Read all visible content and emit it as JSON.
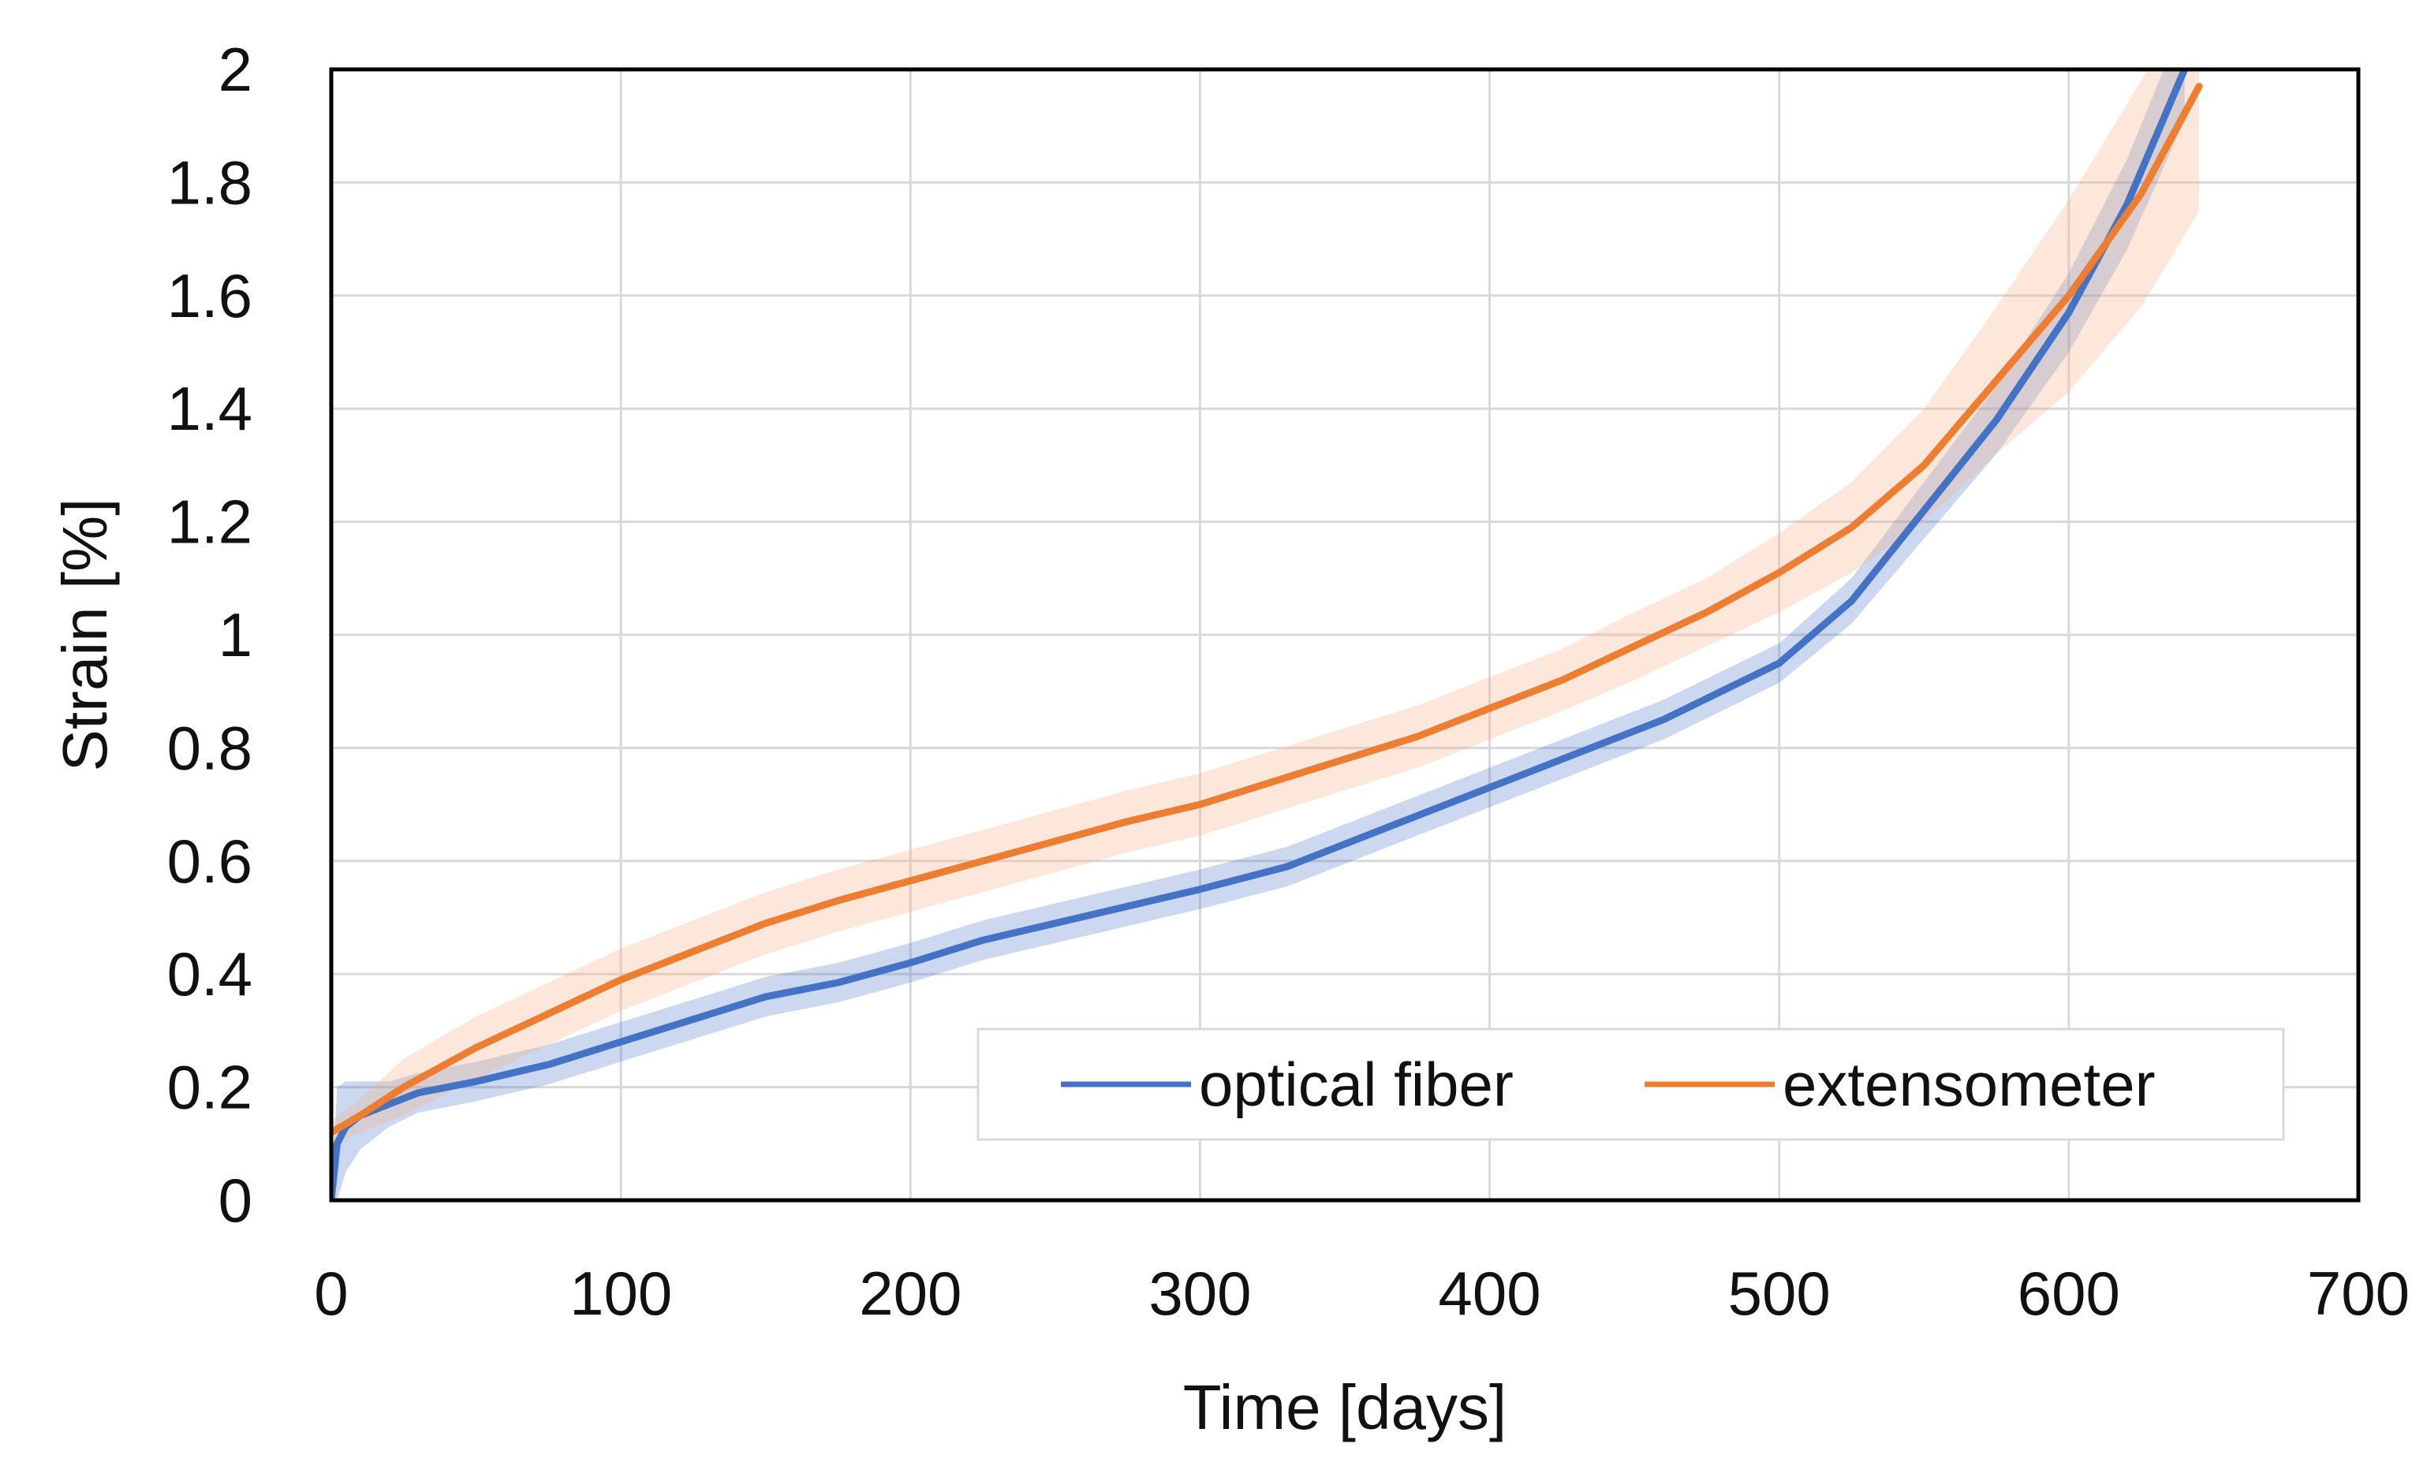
{
  "chart_data": {
    "type": "line",
    "title": "",
    "xlabel": "Time [days]",
    "ylabel": "Strain [%]",
    "xlim": [
      0,
      700
    ],
    "ylim": [
      0,
      2
    ],
    "xticks": [
      0,
      100,
      200,
      300,
      400,
      500,
      600,
      700
    ],
    "yticks": [
      0,
      0.2,
      0.4,
      0.6,
      0.8,
      1,
      1.2,
      1.4,
      1.6,
      1.8,
      2
    ],
    "xtick_labels": [
      "0",
      "100",
      "200",
      "300",
      "400",
      "500",
      "600",
      "700"
    ],
    "ytick_labels": [
      "0",
      "0.2",
      "0.4",
      "0.6",
      "0.8",
      "1",
      "1.2",
      "1.4",
      "1.6",
      "1.8",
      "2"
    ],
    "grid": true,
    "legend_position": "bottom-right",
    "series": [
      {
        "name": "optical fiber",
        "color": "#4472C4",
        "band_color": "#4472C4",
        "x": [
          0,
          2,
          5,
          10,
          20,
          30,
          50,
          75,
          100,
          125,
          150,
          175,
          200,
          225,
          250,
          275,
          300,
          330,
          350,
          375,
          400,
          430,
          460,
          480,
          500,
          525,
          550,
          575,
          600,
          620,
          640
        ],
        "values": [
          0,
          0.1,
          0.13,
          0.15,
          0.17,
          0.19,
          0.21,
          0.24,
          0.28,
          0.32,
          0.36,
          0.385,
          0.42,
          0.46,
          0.49,
          0.52,
          0.55,
          0.59,
          0.63,
          0.68,
          0.73,
          0.79,
          0.85,
          0.9,
          0.95,
          1.06,
          1.22,
          1.38,
          1.57,
          1.76,
          2.0
        ],
        "band_width": [
          0,
          0.1,
          0.08,
          0.06,
          0.04,
          0.035,
          0.035,
          0.035,
          0.035,
          0.035,
          0.035,
          0.035,
          0.035,
          0.035,
          0.035,
          0.035,
          0.035,
          0.035,
          0.035,
          0.035,
          0.035,
          0.035,
          0.035,
          0.035,
          0.035,
          0.04,
          0.05,
          0.06,
          0.07,
          0.08,
          0.09
        ]
      },
      {
        "name": "extensometer",
        "color": "#ED7D31",
        "band_color": "#F4B183",
        "x": [
          0,
          10,
          25,
          50,
          75,
          100,
          125,
          150,
          175,
          200,
          225,
          250,
          275,
          300,
          325,
          350,
          375,
          400,
          425,
          450,
          475,
          500,
          525,
          550,
          575,
          600,
          625,
          645
        ],
        "values": [
          0.12,
          0.15,
          0.2,
          0.27,
          0.33,
          0.39,
          0.44,
          0.49,
          0.53,
          0.565,
          0.6,
          0.635,
          0.67,
          0.7,
          0.74,
          0.78,
          0.82,
          0.87,
          0.92,
          0.98,
          1.04,
          1.11,
          1.19,
          1.3,
          1.45,
          1.6,
          1.78,
          1.97
        ],
        "band_width": [
          0.02,
          0.03,
          0.05,
          0.055,
          0.055,
          0.055,
          0.055,
          0.055,
          0.055,
          0.055,
          0.055,
          0.055,
          0.055,
          0.055,
          0.055,
          0.055,
          0.055,
          0.055,
          0.055,
          0.06,
          0.06,
          0.07,
          0.08,
          0.1,
          0.13,
          0.17,
          0.2,
          0.22
        ]
      }
    ]
  },
  "legend": {
    "items": [
      {
        "label": "optical fiber",
        "color": "#4472C4"
      },
      {
        "label": "extensometer",
        "color": "#ED7D31"
      }
    ]
  },
  "colors": {
    "grid": "#D9D9D9",
    "frame": "#000000",
    "legend_border": "#D9D9D9"
  }
}
